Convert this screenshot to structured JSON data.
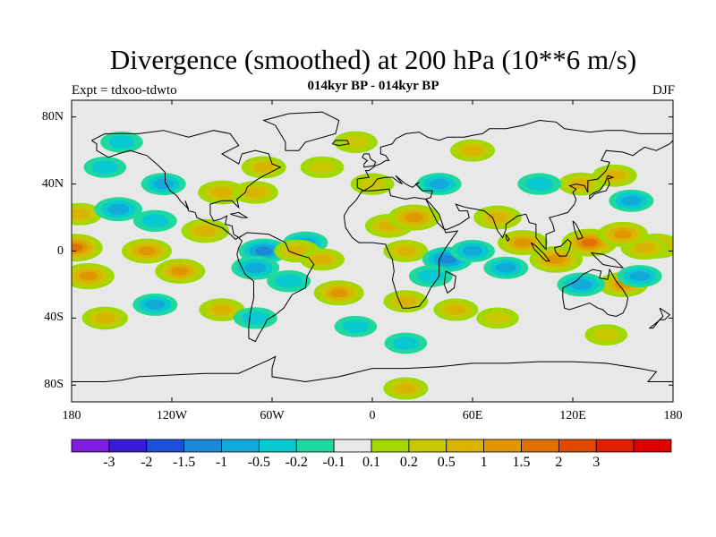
{
  "title": "Divergence (smoothed) at 200 hPa (10**6 m/s)",
  "subtitle": "014kyr BP - 014kyr BP",
  "expt": "Expt = tdxoo-tdwto",
  "season": "DJF",
  "lat_labels": [
    "80N",
    "40N",
    "0",
    "40S",
    "80S"
  ],
  "lon_labels": [
    "180",
    "120W",
    "60W",
    "0",
    "60E",
    "120E",
    "180"
  ],
  "colorbar": {
    "labels": [
      "-3",
      "-2",
      "-1.5",
      "-1",
      "-0.5",
      "-0.2",
      "-0.1",
      "0.1",
      "0.2",
      "0.5",
      "1",
      "1.5",
      "2",
      "3"
    ],
    "colors": [
      "#7d1ee0",
      "#3a1ad8",
      "#1d50d8",
      "#1b88d8",
      "#12aad8",
      "#08c8d0",
      "#1ed8a0",
      "#e8e8e8",
      "#a0d800",
      "#c8c800",
      "#d8b400",
      "#e09600",
      "#e07000",
      "#e04800",
      "#e02000",
      "#e00000"
    ]
  },
  "map_background": "#e8e8e8",
  "chart_data": {
    "type": "filled-contour map",
    "title": "Divergence (smoothed) at 200 hPa (10**6 m/s)",
    "subtitle": "014kyr BP - 014kyr BP",
    "xlim": [
      -180,
      180
    ],
    "ylim": [
      -90,
      90
    ],
    "x_ticks": [
      "180",
      "120W",
      "60W",
      "0",
      "60E",
      "120E",
      "180"
    ],
    "y_ticks": [
      "80N",
      "40N",
      "0",
      "40S",
      "80S"
    ],
    "levels": [
      -3,
      -2,
      -1.5,
      -1,
      -0.5,
      -0.2,
      -0.1,
      0.1,
      0.2,
      0.5,
      1,
      1.5,
      2,
      3
    ],
    "features": [
      {
        "lon": 170,
        "lat": 3,
        "value": 1.0
      },
      {
        "lon": -178,
        "lat": 2,
        "value": 1.5
      },
      {
        "lon": 163,
        "lat": 2,
        "value": 0.8
      },
      {
        "lon": -170,
        "lat": -15,
        "value": 1.2
      },
      {
        "lon": -175,
        "lat": 22,
        "value": 0.5
      },
      {
        "lon": -135,
        "lat": 0,
        "value": 1.0
      },
      {
        "lon": -115,
        "lat": -12,
        "value": 1.0
      },
      {
        "lon": -100,
        "lat": 12,
        "value": 0.8
      },
      {
        "lon": -152,
        "lat": 25,
        "value": -0.8
      },
      {
        "lon": -125,
        "lat": 40,
        "value": -0.5
      },
      {
        "lon": -160,
        "lat": 50,
        "value": -0.3
      },
      {
        "lon": -130,
        "lat": 18,
        "value": -0.4
      },
      {
        "lon": -90,
        "lat": 35,
        "value": 0.8
      },
      {
        "lon": -70,
        "lat": 35,
        "value": 0.6
      },
      {
        "lon": -65,
        "lat": 50,
        "value": 0.5
      },
      {
        "lon": -65,
        "lat": 0,
        "value": -1.0
      },
      {
        "lon": -70,
        "lat": -10,
        "value": -0.8
      },
      {
        "lon": -40,
        "lat": 5,
        "value": -0.5
      },
      {
        "lon": -45,
        "lat": 0,
        "value": 0.6
      },
      {
        "lon": -30,
        "lat": -5,
        "value": 0.5
      },
      {
        "lon": -20,
        "lat": -25,
        "value": 1.0
      },
      {
        "lon": -50,
        "lat": -18,
        "value": -0.4
      },
      {
        "lon": -90,
        "lat": -35,
        "value": 0.6
      },
      {
        "lon": -70,
        "lat": -40,
        "value": -0.4
      },
      {
        "lon": -160,
        "lat": -40,
        "value": 0.6
      },
      {
        "lon": -130,
        "lat": -32,
        "value": -0.5
      },
      {
        "lon": -10,
        "lat": -45,
        "value": -0.3
      },
      {
        "lon": 10,
        "lat": 15,
        "value": 0.8
      },
      {
        "lon": 25,
        "lat": 20,
        "value": 1.2
      },
      {
        "lon": 0,
        "lat": 40,
        "value": 0.4
      },
      {
        "lon": 40,
        "lat": 40,
        "value": -0.5
      },
      {
        "lon": 20,
        "lat": 0,
        "value": 0.5
      },
      {
        "lon": 45,
        "lat": -5,
        "value": -1.0
      },
      {
        "lon": 35,
        "lat": -15,
        "value": -0.4
      },
      {
        "lon": 20,
        "lat": -30,
        "value": 0.5
      },
      {
        "lon": 50,
        "lat": -35,
        "value": 0.5
      },
      {
        "lon": 60,
        "lat": 0,
        "value": -0.5
      },
      {
        "lon": 75,
        "lat": 20,
        "value": 0.8
      },
      {
        "lon": 90,
        "lat": 5,
        "value": 1.0
      },
      {
        "lon": 110,
        "lat": -5,
        "value": 1.3
      },
      {
        "lon": 130,
        "lat": 5,
        "value": 1.5
      },
      {
        "lon": 150,
        "lat": 10,
        "value": 1.0
      },
      {
        "lon": 125,
        "lat": 40,
        "value": 0.6
      },
      {
        "lon": 100,
        "lat": 40,
        "value": -0.4
      },
      {
        "lon": 155,
        "lat": 30,
        "value": -0.5
      },
      {
        "lon": 145,
        "lat": 45,
        "value": 0.5
      },
      {
        "lon": 150,
        "lat": -20,
        "value": 1.0
      },
      {
        "lon": 125,
        "lat": -20,
        "value": -0.8
      },
      {
        "lon": 160,
        "lat": -15,
        "value": -0.5
      },
      {
        "lon": 80,
        "lat": -10,
        "value": -0.5
      },
      {
        "lon": 75,
        "lat": -40,
        "value": 0.3
      },
      {
        "lon": 140,
        "lat": -50,
        "value": 0.3
      },
      {
        "lon": 20,
        "lat": -55,
        "value": -0.3
      },
      {
        "lon": -30,
        "lat": 50,
        "value": 0.4
      },
      {
        "lon": -10,
        "lat": 65,
        "value": 0.4
      },
      {
        "lon": 60,
        "lat": 60,
        "value": 0.5
      },
      {
        "lon": -150,
        "lat": 65,
        "value": -0.3
      },
      {
        "lon": 20,
        "lat": -82,
        "value": 0.5
      }
    ]
  }
}
